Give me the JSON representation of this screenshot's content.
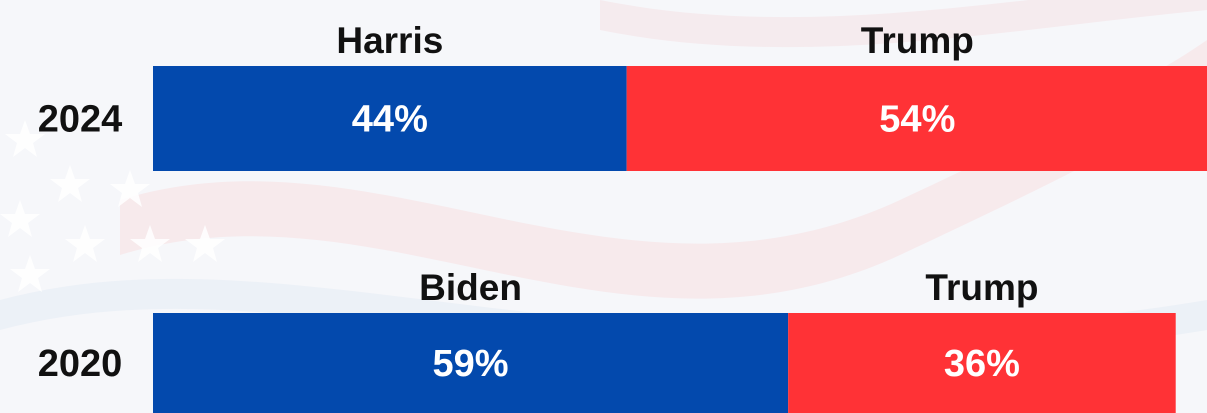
{
  "chart_data": {
    "type": "bar",
    "orientation": "horizontal-stacked",
    "rows": [
      {
        "year": "2024",
        "segments": [
          {
            "candidate": "Harris",
            "value": 44,
            "label": "44%",
            "color": "#0349ad"
          },
          {
            "candidate": "Trump",
            "value": 54,
            "label": "54%",
            "color": "#ff3236"
          }
        ]
      },
      {
        "year": "2020",
        "segments": [
          {
            "candidate": "Biden",
            "value": 59,
            "label": "59%",
            "color": "#0349ad"
          },
          {
            "candidate": "Trump",
            "value": 36,
            "label": "36%",
            "color": "#ff3236"
          }
        ]
      }
    ],
    "title": "",
    "xlabel": "",
    "ylabel": "",
    "xlim": [
      0,
      100
    ],
    "grid": false,
    "legend": "none"
  }
}
